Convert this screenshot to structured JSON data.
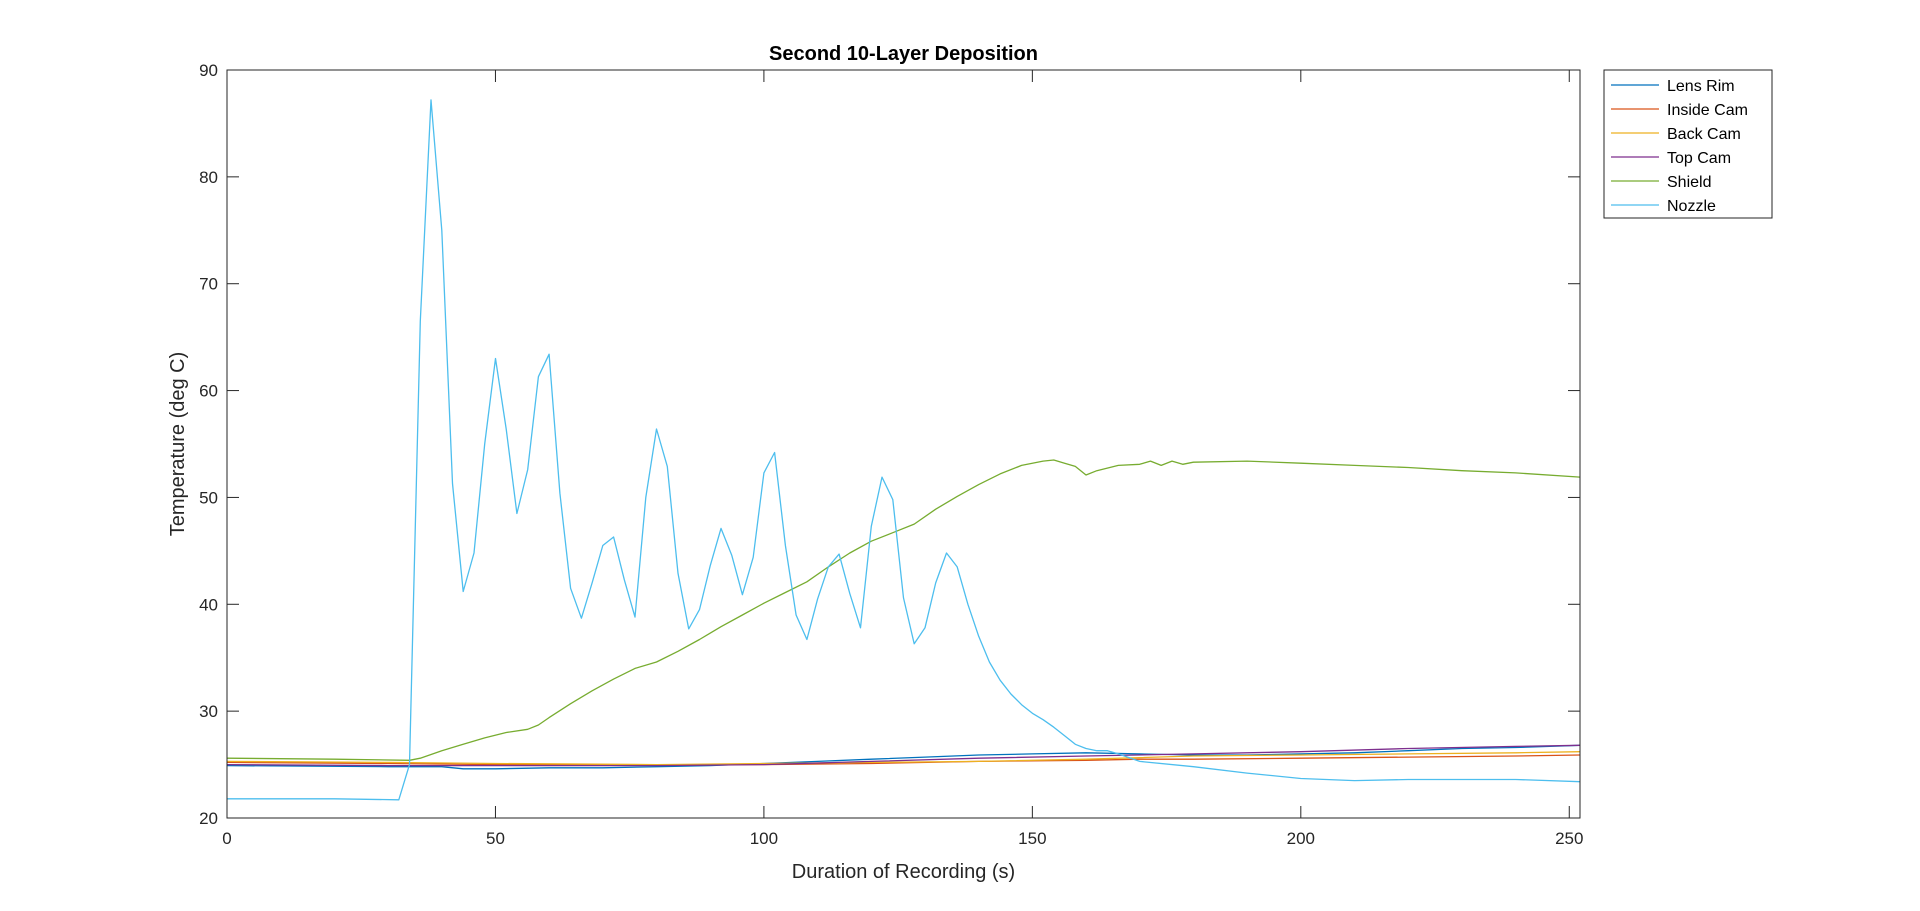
{
  "chart_data": {
    "type": "line",
    "title": "Second 10-Layer Deposition",
    "xlabel": "Duration of Recording (s)",
    "ylabel": "Temperature (deg C)",
    "xlim": [
      0,
      252
    ],
    "ylim": [
      20,
      90
    ],
    "xticks": [
      0,
      50,
      100,
      150,
      200,
      250
    ],
    "yticks": [
      20,
      30,
      40,
      50,
      60,
      70,
      80,
      90
    ],
    "grid": false,
    "legend_position": "outside-top-right",
    "series": [
      {
        "name": "Lens Rim",
        "color": "#0072BD",
        "x": [
          0,
          30,
          40,
          44,
          50,
          60,
          70,
          80,
          90,
          100,
          110,
          120,
          130,
          140,
          150,
          160,
          170,
          180,
          190,
          200,
          210,
          220,
          230,
          240,
          252
        ],
        "y": [
          24.9,
          24.8,
          24.8,
          24.6,
          24.6,
          24.7,
          24.7,
          24.8,
          24.9,
          25.1,
          25.3,
          25.5,
          25.7,
          25.9,
          26.0,
          26.1,
          26.0,
          25.9,
          25.9,
          26.0,
          26.1,
          26.3,
          26.5,
          26.6,
          26.8
        ]
      },
      {
        "name": "Inside Cam",
        "color": "#D95319",
        "x": [
          0,
          30,
          50,
          80,
          100,
          120,
          140,
          160,
          170,
          180,
          200,
          220,
          240,
          252
        ],
        "y": [
          25.2,
          25.1,
          25.0,
          25.0,
          25.0,
          25.1,
          25.3,
          25.4,
          25.5,
          25.5,
          25.6,
          25.7,
          25.8,
          25.9
        ]
      },
      {
        "name": "Back Cam",
        "color": "#EDB120",
        "x": [
          0,
          30,
          50,
          80,
          100,
          120,
          140,
          160,
          180,
          200,
          220,
          240,
          252
        ],
        "y": [
          25.3,
          25.2,
          25.1,
          25.0,
          25.1,
          25.2,
          25.3,
          25.5,
          25.8,
          25.9,
          26.0,
          26.1,
          26.2
        ]
      },
      {
        "name": "Top Cam",
        "color": "#7E2F8E",
        "x": [
          0,
          30,
          50,
          80,
          100,
          120,
          140,
          160,
          180,
          200,
          220,
          240,
          252
        ],
        "y": [
          25.0,
          24.9,
          24.9,
          24.9,
          25.0,
          25.3,
          25.6,
          25.8,
          26.0,
          26.2,
          26.5,
          26.7,
          26.8
        ]
      },
      {
        "name": "Shield",
        "color": "#77AC30",
        "x": [
          0,
          20,
          34,
          36,
          40,
          44,
          48,
          52,
          56,
          58,
          60,
          64,
          68,
          72,
          76,
          80,
          84,
          88,
          92,
          96,
          100,
          104,
          108,
          112,
          116,
          120,
          124,
          128,
          132,
          136,
          140,
          144,
          148,
          152,
          154,
          156,
          158,
          160,
          162,
          166,
          170,
          172,
          174,
          176,
          178,
          180,
          190,
          200,
          210,
          220,
          230,
          240,
          252
        ],
        "y": [
          25.6,
          25.5,
          25.4,
          25.6,
          26.3,
          26.9,
          27.5,
          28.0,
          28.3,
          28.7,
          29.4,
          30.7,
          31.9,
          33.0,
          34.0,
          34.6,
          35.6,
          36.7,
          37.9,
          39.0,
          40.1,
          41.1,
          42.1,
          43.5,
          44.8,
          45.9,
          46.7,
          47.5,
          48.9,
          50.1,
          51.2,
          52.2,
          53.0,
          53.4,
          53.5,
          53.2,
          52.9,
          52.1,
          52.5,
          53.0,
          53.1,
          53.4,
          53.0,
          53.4,
          53.1,
          53.3,
          53.4,
          53.2,
          53.0,
          52.8,
          52.5,
          52.3,
          51.9
        ]
      },
      {
        "name": "Nozzle",
        "color": "#4DBEEE",
        "x": [
          0,
          20,
          32,
          34,
          36,
          38,
          40,
          42,
          44,
          46,
          48,
          50,
          52,
          54,
          56,
          58,
          60,
          62,
          64,
          66,
          68,
          70,
          72,
          74,
          76,
          78,
          80,
          82,
          84,
          86,
          88,
          90,
          92,
          94,
          96,
          98,
          100,
          102,
          104,
          106,
          108,
          110,
          112,
          114,
          116,
          118,
          120,
          122,
          124,
          126,
          128,
          130,
          132,
          134,
          136,
          138,
          140,
          142,
          144,
          146,
          148,
          150,
          152,
          154,
          156,
          158,
          160,
          162,
          164,
          166,
          170,
          180,
          190,
          200,
          210,
          220,
          230,
          240,
          252
        ],
        "y": [
          21.8,
          21.8,
          21.7,
          25.0,
          66.5,
          87.2,
          75.0,
          51.3,
          41.2,
          44.8,
          55.0,
          63.0,
          56.4,
          48.5,
          52.6,
          61.3,
          63.4,
          50.4,
          41.5,
          38.7,
          42.0,
          45.5,
          46.3,
          42.3,
          38.8,
          50.0,
          56.4,
          52.9,
          42.9,
          37.7,
          39.5,
          43.6,
          47.1,
          44.6,
          40.9,
          44.4,
          52.3,
          54.2,
          45.5,
          39.0,
          36.7,
          40.5,
          43.5,
          44.7,
          41.0,
          37.8,
          47.3,
          51.9,
          49.8,
          40.6,
          36.3,
          37.8,
          42.0,
          44.8,
          43.5,
          40.0,
          37.0,
          34.6,
          32.9,
          31.6,
          30.6,
          29.8,
          29.2,
          28.5,
          27.7,
          26.9,
          26.5,
          26.3,
          26.3,
          26.0,
          25.3,
          24.8,
          24.2,
          23.7,
          23.5,
          23.6,
          23.6,
          23.6,
          23.4
        ]
      }
    ]
  }
}
